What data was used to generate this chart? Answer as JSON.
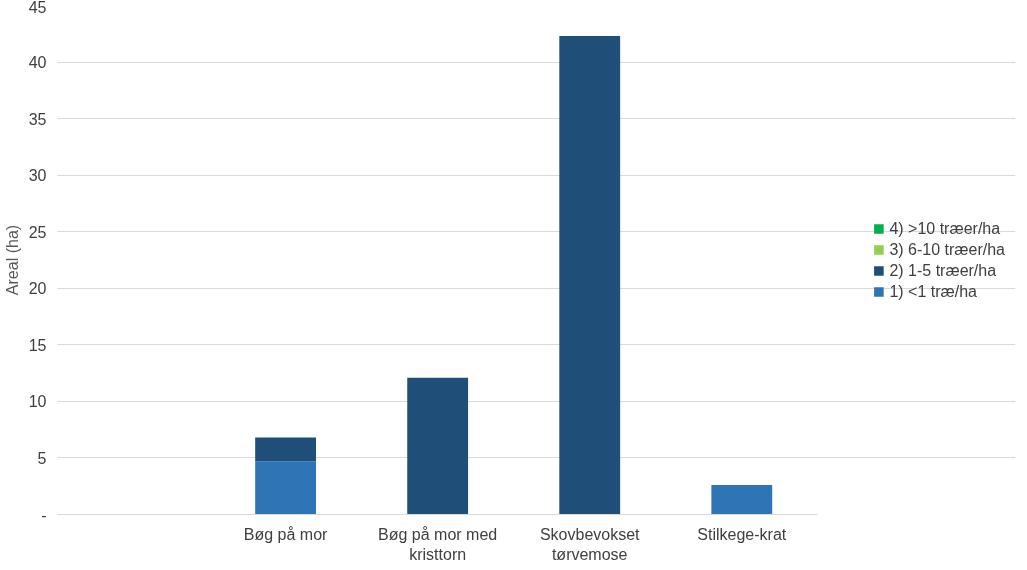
{
  "chart_data": {
    "type": "bar",
    "stacked": true,
    "ylabel": "Areal (ha)",
    "categories": [
      null,
      "Bøg på mor",
      "Bøg på mor med kristtorn",
      "Skovbevokset tørvemose",
      "Stilkege-krat"
    ],
    "series": [
      {
        "name": "1) <1 træ/ha",
        "color": "#2e75b6",
        "values": [
          null,
          4.7,
          null,
          null,
          2.6
        ]
      },
      {
        "name": "2) 1-5 træer/ha",
        "color": "#1f4e79",
        "values": [
          null,
          2.1,
          12.1,
          42.3,
          null
        ]
      },
      {
        "name": "3) 6-10 træer/ha",
        "color": "#92d050",
        "values": [
          null,
          0,
          0,
          0,
          0
        ]
      },
      {
        "name": "4) >10 træer/ha",
        "color": "#00b050",
        "values": [
          null,
          0,
          0,
          0,
          0
        ]
      }
    ],
    "ylim": [
      0,
      45
    ],
    "yticks": [
      {
        "value": 0,
        "label": "-"
      },
      5,
      10,
      15,
      20,
      25,
      30,
      35,
      40,
      45
    ],
    "grid": "y",
    "legend": "right"
  }
}
